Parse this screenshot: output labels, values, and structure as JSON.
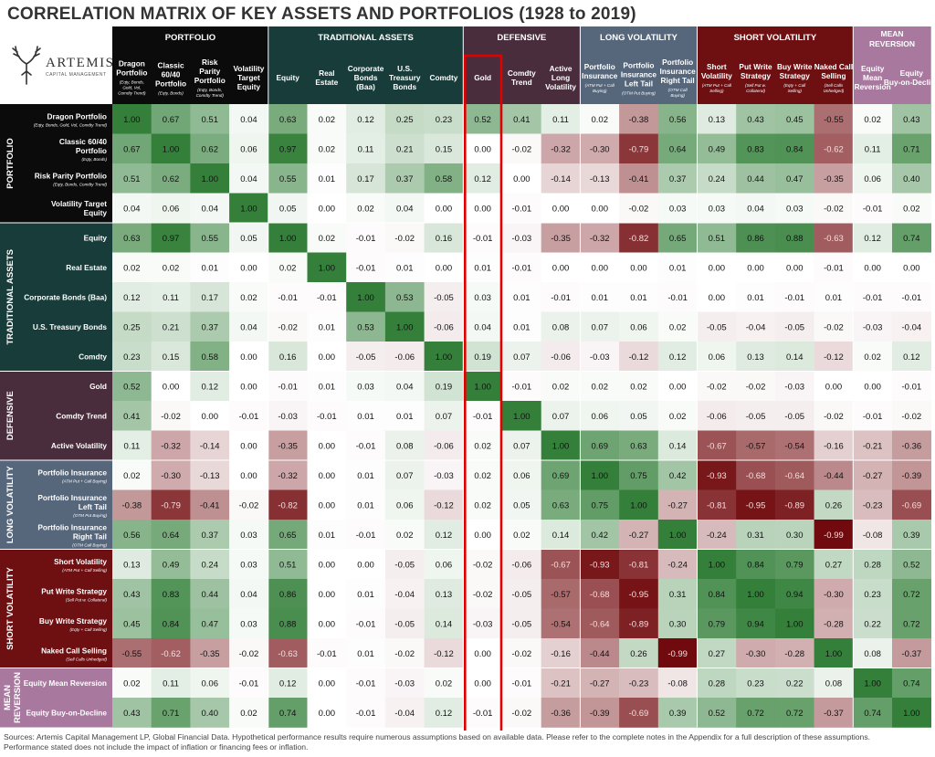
{
  "title": "CORRELATION MATRIX OF KEY ASSETS AND PORTFOLIOS (1928 to 2019)",
  "logo": {
    "name": "ARTEMIS",
    "subtitle": "CAPITAL MANAGEMENT"
  },
  "notes": [
    "Sources: Artemis Capital Management LP, Global Financial Data. Hypothetical performance results require numerous assumptions based on available data. Please refer to the complete notes in the Appendix for a full description of these assumptions.",
    "Performance stated does not include the impact of inflation or financing fees or inflation."
  ],
  "colors": {
    "positive": "#2e7d32",
    "negative": "#7b0d0d",
    "highlight": "#e00000"
  },
  "highlight_label": "Gold",
  "chart_data": {
    "type": "heatmap",
    "title": "CORRELATION MATRIX OF KEY ASSETS AND PORTFOLIOS (1928 to 2019)",
    "value_range": [
      -1,
      1
    ],
    "groups": [
      {
        "name": "PORTFOLIO",
        "count": 4,
        "color": "#0b0b0b"
      },
      {
        "name": "TRADITIONAL ASSETS",
        "count": 5,
        "color": "#173c3a"
      },
      {
        "name": "DEFENSIVE",
        "count": 3,
        "color": "#4a2d3c"
      },
      {
        "name": "LONG VOLATILITY",
        "count": 3,
        "color": "#56677c"
      },
      {
        "name": "SHORT VOLATILITY",
        "count": 4,
        "color": "#6e0f12"
      },
      {
        "name": "MEAN REVERSION",
        "count": 2,
        "color": "#a8789f"
      }
    ],
    "columns": [
      {
        "label": "Dragon Portfolio",
        "sub": "(Eqty, Bonds, Gold, Vol, Comdty Trend)"
      },
      {
        "label": "Classic 60/40 Portfolio",
        "sub": "(Eqty, Bonds)"
      },
      {
        "label": "Risk Parity Portfolio",
        "sub": "(Eqty, Bonds, Comdty Trend)"
      },
      {
        "label": "Volatility Target Equity",
        "sub": ""
      },
      {
        "label": "Equity",
        "sub": ""
      },
      {
        "label": "Real Estate",
        "sub": ""
      },
      {
        "label": "Corporate Bonds (Baa)",
        "sub": ""
      },
      {
        "label": "U.S. Treasury Bonds",
        "sub": ""
      },
      {
        "label": "Comdty",
        "sub": ""
      },
      {
        "label": "Gold",
        "sub": ""
      },
      {
        "label": "Comdty Trend",
        "sub": ""
      },
      {
        "label": "Active Long Volatility",
        "sub": ""
      },
      {
        "label": "Portfolio Insurance",
        "sub": "(ATM Put + Call Buying)"
      },
      {
        "label": "Portfolio Insurance Left Tail",
        "sub": "(OTM Put Buying)"
      },
      {
        "label": "Portfolio Insurance Right Tail",
        "sub": "(OTM Call Buying)"
      },
      {
        "label": "Short Volatility",
        "sub": "(ATM Put + Call Selling)"
      },
      {
        "label": "Put Write Strategy",
        "sub": "(Sell Put w. Collateral)"
      },
      {
        "label": "Buy Write Strategy",
        "sub": "(Eqty + Call Selling)"
      },
      {
        "label": "Naked Call Selling",
        "sub": "(Sell Calls Unhedged)"
      },
      {
        "label": "Equity Mean Reversion",
        "sub": ""
      },
      {
        "label": "Equity Buy-on-Decline",
        "sub": ""
      }
    ],
    "rows": [
      {
        "label": "Dragon Portfolio",
        "sub": "(Eqty, Bonds, Gold, Vol, Comdty Trend)"
      },
      {
        "label": "Classic 60/40 Portfolio",
        "sub": "(Eqty, Bonds)"
      },
      {
        "label": "Risk Parity Portfolio",
        "sub": "(Eqty, Bonds, Comdty Trend)"
      },
      {
        "label": "Volatility Target Equity",
        "sub": ""
      },
      {
        "label": "Equity",
        "sub": ""
      },
      {
        "label": "Real Estate",
        "sub": ""
      },
      {
        "label": "Corporate Bonds (Baa)",
        "sub": ""
      },
      {
        "label": "U.S. Treasury Bonds",
        "sub": ""
      },
      {
        "label": "Comdty",
        "sub": ""
      },
      {
        "label": "Gold",
        "sub": ""
      },
      {
        "label": "Comdty Trend",
        "sub": ""
      },
      {
        "label": "Active Volatility",
        "sub": ""
      },
      {
        "label": "Portfolio Insurance",
        "sub": "(ATM Put + Call Buying)"
      },
      {
        "label": "Portfolio Insurance Left Tail",
        "sub": "(OTM Put Buying)"
      },
      {
        "label": "Portfolio Insurance Right Tail",
        "sub": "(OTM Call Buying)"
      },
      {
        "label": "Short Volatility",
        "sub": "(ATM Put + Call Selling)"
      },
      {
        "label": "Put Write Strategy",
        "sub": "(Sell Put w. Collateral)"
      },
      {
        "label": "Buy Write Strategy",
        "sub": "(Eqty + Call Selling)"
      },
      {
        "label": "Naked Call Selling",
        "sub": "(Sell Calls Unhedged)"
      },
      {
        "label": "Equity Mean Reversion",
        "sub": ""
      },
      {
        "label": "Equity Buy-on-Decline",
        "sub": ""
      }
    ],
    "values": [
      [
        "1.00",
        "0.67",
        "0.51",
        "0.04",
        "0.63",
        "0.02",
        "0.12",
        "0.25",
        "0.23",
        "0.52",
        "0.41",
        "0.11",
        "0.02",
        "-0.38",
        "0.56",
        "0.13",
        "0.43",
        "0.45",
        "-0.55",
        "0.02",
        "0.43"
      ],
      [
        "0.67",
        "1.00",
        "0.62",
        "0.06",
        "0.97",
        "0.02",
        "0.11",
        "0.21",
        "0.15",
        "0.00",
        "-0.02",
        "-0.32",
        "-0.30",
        "-0.79",
        "0.64",
        "0.49",
        "0.83",
        "0.84",
        "-0.62",
        "0.11",
        "0.71"
      ],
      [
        "0.51",
        "0.62",
        "1.00",
        "0.04",
        "0.55",
        "0.01",
        "0.17",
        "0.37",
        "0.58",
        "0.12",
        "0.00",
        "-0.14",
        "-0.13",
        "-0.41",
        "0.37",
        "0.24",
        "0.44",
        "0.47",
        "-0.35",
        "0.06",
        "0.40"
      ],
      [
        "0.04",
        "0.06",
        "0.04",
        "1.00",
        "0.05",
        "0.00",
        "0.02",
        "0.04",
        "0.00",
        "0.00",
        "-0.01",
        "0.00",
        "0.00",
        "-0.02",
        "0.03",
        "0.03",
        "0.04",
        "0.03",
        "-0.02",
        "-0.01",
        "0.02"
      ],
      [
        "0.63",
        "0.97",
        "0.55",
        "0.05",
        "1.00",
        "0.02",
        "-0.01",
        "-0.02",
        "0.16",
        "-0.01",
        "-0.03",
        "-0.35",
        "-0.32",
        "-0.82",
        "0.65",
        "0.51",
        "0.86",
        "0.88",
        "-0.63",
        "0.12",
        "0.74"
      ],
      [
        "0.02",
        "0.02",
        "0.01",
        "0.00",
        "0.02",
        "1.00",
        "-0.01",
        "0.01",
        "0.00",
        "0.01",
        "-0.01",
        "0.00",
        "0.00",
        "0.00",
        "0.01",
        "0.00",
        "0.00",
        "0.00",
        "-0.01",
        "0.00",
        "0.00"
      ],
      [
        "0.12",
        "0.11",
        "0.17",
        "0.02",
        "-0.01",
        "-0.01",
        "1.00",
        "0.53",
        "-0.05",
        "0.03",
        "0.01",
        "-0.01",
        "0.01",
        "0.01",
        "-0.01",
        "0.00",
        "0.01",
        "-0.01",
        "0.01",
        "-0.01",
        "-0.01"
      ],
      [
        "0.25",
        "0.21",
        "0.37",
        "0.04",
        "-0.02",
        "0.01",
        "0.53",
        "1.00",
        "-0.06",
        "0.04",
        "0.01",
        "0.08",
        "0.07",
        "0.06",
        "0.02",
        "-0.05",
        "-0.04",
        "-0.05",
        "-0.02",
        "-0.03",
        "-0.04"
      ],
      [
        "0.23",
        "0.15",
        "0.58",
        "0.00",
        "0.16",
        "0.00",
        "-0.05",
        "-0.06",
        "1.00",
        "0.19",
        "0.07",
        "-0.06",
        "-0.03",
        "-0.12",
        "0.12",
        "0.06",
        "0.13",
        "0.14",
        "-0.12",
        "0.02",
        "0.12"
      ],
      [
        "0.52",
        "0.00",
        "0.12",
        "0.00",
        "-0.01",
        "0.01",
        "0.03",
        "0.04",
        "0.19",
        "1.00",
        "-0.01",
        "0.02",
        "0.02",
        "0.02",
        "0.00",
        "-0.02",
        "-0.02",
        "-0.03",
        "0.00",
        "0.00",
        "-0.01"
      ],
      [
        "0.41",
        "-0.02",
        "0.00",
        "-0.01",
        "-0.03",
        "-0.01",
        "0.01",
        "0.01",
        "0.07",
        "-0.01",
        "1.00",
        "0.07",
        "0.06",
        "0.05",
        "0.02",
        "-0.06",
        "-0.05",
        "-0.05",
        "-0.02",
        "-0.01",
        "-0.02"
      ],
      [
        "0.11",
        "-0.32",
        "-0.14",
        "0.00",
        "-0.35",
        "0.00",
        "-0.01",
        "0.08",
        "-0.06",
        "0.02",
        "0.07",
        "1.00",
        "0.69",
        "0.63",
        "0.14",
        "-0.67",
        "-0.57",
        "-0.54",
        "-0.16",
        "-0.21",
        "-0.36"
      ],
      [
        "0.02",
        "-0.30",
        "-0.13",
        "0.00",
        "-0.32",
        "0.00",
        "0.01",
        "0.07",
        "-0.03",
        "0.02",
        "0.06",
        "0.69",
        "1.00",
        "0.75",
        "0.42",
        "-0.93",
        "-0.68",
        "-0.64",
        "-0.44",
        "-0.27",
        "-0.39"
      ],
      [
        "-0.38",
        "-0.79",
        "-0.41",
        "-0.02",
        "-0.82",
        "0.00",
        "0.01",
        "0.06",
        "-0.12",
        "0.02",
        "0.05",
        "0.63",
        "0.75",
        "1.00",
        "-0.27",
        "-0.81",
        "-0.95",
        "-0.89",
        "0.26",
        "-0.23",
        "-0.69"
      ],
      [
        "0.56",
        "0.64",
        "0.37",
        "0.03",
        "0.65",
        "0.01",
        "-0.01",
        "0.02",
        "0.12",
        "0.00",
        "0.02",
        "0.14",
        "0.42",
        "-0.27",
        "1.00",
        "-0.24",
        "0.31",
        "0.30",
        "-0.99",
        "-0.08",
        "0.39"
      ],
      [
        "0.13",
        "0.49",
        "0.24",
        "0.03",
        "0.51",
        "0.00",
        "0.00",
        "-0.05",
        "0.06",
        "-0.02",
        "-0.06",
        "-0.67",
        "-0.93",
        "-0.81",
        "-0.24",
        "1.00",
        "0.84",
        "0.79",
        "0.27",
        "0.28",
        "0.52"
      ],
      [
        "0.43",
        "0.83",
        "0.44",
        "0.04",
        "0.86",
        "0.00",
        "0.01",
        "-0.04",
        "0.13",
        "-0.02",
        "-0.05",
        "-0.57",
        "-0.68",
        "-0.95",
        "0.31",
        "0.84",
        "1.00",
        "0.94",
        "-0.30",
        "0.23",
        "0.72"
      ],
      [
        "0.45",
        "0.84",
        "0.47",
        "0.03",
        "0.88",
        "0.00",
        "-0.01",
        "-0.05",
        "0.14",
        "-0.03",
        "-0.05",
        "-0.54",
        "-0.64",
        "-0.89",
        "0.30",
        "0.79",
        "0.94",
        "1.00",
        "-0.28",
        "0.22",
        "0.72"
      ],
      [
        "-0.55",
        "-0.62",
        "-0.35",
        "-0.02",
        "-0.63",
        "-0.01",
        "0.01",
        "-0.02",
        "-0.12",
        "0.00",
        "-0.02",
        "-0.16",
        "-0.44",
        "0.26",
        "-0.99",
        "0.27",
        "-0.30",
        "-0.28",
        "1.00",
        "0.08",
        "-0.37"
      ],
      [
        "0.02",
        "0.11",
        "0.06",
        "-0.01",
        "0.12",
        "0.00",
        "-0.01",
        "-0.03",
        "0.02",
        "0.00",
        "-0.01",
        "-0.21",
        "-0.27",
        "-0.23",
        "-0.08",
        "0.28",
        "0.23",
        "0.22",
        "0.08",
        "1.00",
        "0.74"
      ],
      [
        "0.43",
        "0.71",
        "0.40",
        "0.02",
        "0.74",
        "0.00",
        "-0.01",
        "-0.04",
        "0.12",
        "-0.01",
        "-0.02",
        "-0.36",
        "-0.39",
        "-0.69",
        "0.39",
        "0.52",
        "0.72",
        "0.72",
        "-0.37",
        "0.74",
        "1.00"
      ]
    ]
  }
}
